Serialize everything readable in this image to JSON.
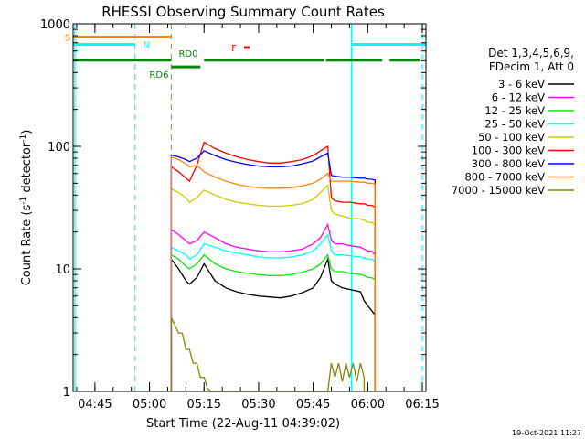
{
  "chart_data": {
    "type": "line",
    "title": "RHESSI Observing Summary Count Rates",
    "xlabel": "Start Time (22-Aug-11 04:39:02)",
    "ylabel_main": "Count Rate (s",
    "ylabel_sup1": "-1",
    "ylabel_mid": " detector",
    "ylabel_sup2": "-1",
    "ylabel_end": ")",
    "x_unit": "minutes after 04:39:02",
    "xlim": [
      0,
      97
    ],
    "ylim": [
      1,
      1000
    ],
    "y_scale": "log",
    "x_ticks": [
      {
        "value": 6,
        "label": "04:45"
      },
      {
        "value": 21,
        "label": "05:00"
      },
      {
        "value": 36,
        "label": "05:15"
      },
      {
        "value": 51,
        "label": "05:30"
      },
      {
        "value": 66,
        "label": "05:45"
      },
      {
        "value": 81,
        "label": "06:00"
      },
      {
        "value": 96,
        "label": "06:15"
      }
    ],
    "y_ticks": [
      {
        "value": 1,
        "label": "1"
      },
      {
        "value": 10,
        "label": "10"
      },
      {
        "value": 100,
        "label": "100"
      },
      {
        "value": 1000,
        "label": "1000"
      }
    ],
    "legend_header": [
      "Det 1,3,4,5,6,9,",
      "FDecim 1, Att 0"
    ],
    "legend_placement": "right",
    "series": [
      {
        "name": "3 - 6 keV",
        "color": "#000000",
        "x": [
          27,
          29,
          31,
          32,
          34,
          36,
          39,
          42,
          45,
          48,
          51,
          54,
          57,
          60,
          63,
          66,
          68,
          70,
          71,
          72,
          74,
          76,
          79,
          80,
          81,
          82,
          83
        ],
        "y": [
          12,
          10,
          8,
          7.5,
          8.5,
          11,
          8,
          7,
          6.5,
          6.2,
          6.0,
          5.9,
          5.8,
          6.0,
          6.4,
          7.0,
          8.5,
          12,
          8,
          7.5,
          7.0,
          6.8,
          6.5,
          5.5,
          5.0,
          4.6,
          4.2
        ]
      },
      {
        "name": "6 - 12 keV",
        "color": "#ff00ff",
        "x": [
          27,
          29,
          31,
          32,
          34,
          36,
          39,
          42,
          45,
          48,
          51,
          54,
          57,
          60,
          63,
          66,
          68,
          70,
          71,
          72,
          74,
          76,
          79,
          80,
          81,
          82,
          83
        ],
        "y": [
          21,
          19,
          17,
          16,
          17,
          20,
          18,
          16,
          15,
          14.5,
          14,
          13.8,
          13.8,
          14,
          14.5,
          16,
          18,
          23,
          17,
          16,
          16,
          15.5,
          15,
          14.5,
          14,
          14,
          13
        ]
      },
      {
        "name": "12 - 25 keV",
        "color": "#00ee00",
        "x": [
          27,
          29,
          31,
          32,
          34,
          36,
          39,
          42,
          45,
          48,
          51,
          54,
          57,
          60,
          63,
          66,
          68,
          70,
          71,
          72,
          74,
          76,
          79,
          80,
          81,
          82,
          83
        ],
        "y": [
          13,
          12,
          10.5,
          10,
          11,
          13,
          11,
          10,
          9.5,
          9.2,
          9.0,
          8.8,
          8.8,
          9.0,
          9.4,
          10,
          11,
          13,
          10,
          9.5,
          9.5,
          9.2,
          9.0,
          8.8,
          8.5,
          8.5,
          8.2
        ]
      },
      {
        "name": "25 - 50 keV",
        "color": "#00ffff",
        "x": [
          27,
          29,
          31,
          32,
          34,
          36,
          39,
          42,
          45,
          48,
          51,
          54,
          57,
          60,
          63,
          66,
          68,
          70,
          71,
          72,
          74,
          76,
          79,
          80,
          81,
          82,
          83
        ],
        "y": [
          15,
          14,
          13,
          12,
          13,
          16,
          15,
          14,
          13.5,
          13,
          12.5,
          12.3,
          12.3,
          12.5,
          13,
          14,
          16,
          19,
          14,
          13,
          13,
          12.8,
          12.5,
          12.3,
          12,
          12,
          11.5
        ]
      },
      {
        "name": "50 - 100 keV",
        "color": "#cccc00",
        "x": [
          27,
          29,
          31,
          32,
          34,
          36,
          39,
          42,
          45,
          48,
          51,
          54,
          57,
          60,
          63,
          66,
          68,
          70,
          71,
          72,
          74,
          76,
          79,
          80,
          81,
          82,
          83
        ],
        "y": [
          45,
          42,
          38,
          35,
          38,
          44,
          40,
          37,
          35,
          34,
          33,
          32.5,
          32.5,
          33,
          34,
          37,
          42,
          48,
          30,
          28,
          27,
          26,
          25.5,
          25,
          24,
          24,
          23
        ]
      },
      {
        "name": "100 - 300 keV",
        "color": "#ff0000",
        "x": [
          27,
          29,
          31,
          32,
          34,
          36,
          39,
          42,
          45,
          48,
          51,
          54,
          57,
          60,
          63,
          66,
          68,
          70,
          71,
          72,
          74,
          76,
          79,
          80,
          81,
          82,
          83
        ],
        "y": [
          68,
          62,
          55,
          52,
          70,
          108,
          96,
          88,
          82,
          78,
          75,
          73,
          73,
          75,
          78,
          84,
          92,
          100,
          38,
          36,
          35,
          35,
          34,
          34,
          33,
          33,
          32
        ]
      },
      {
        "name": "300 - 800 keV",
        "color": "#0000ff",
        "x": [
          27,
          29,
          31,
          32,
          34,
          36,
          39,
          42,
          45,
          48,
          51,
          54,
          57,
          60,
          63,
          66,
          68,
          70,
          71,
          72,
          74,
          76,
          79,
          80,
          81,
          82,
          83
        ],
        "y": [
          85,
          82,
          78,
          75,
          80,
          92,
          84,
          78,
          74,
          71,
          69,
          68,
          68,
          69,
          72,
          76,
          82,
          88,
          58,
          57,
          56,
          56,
          55,
          55,
          54,
          54,
          53
        ]
      },
      {
        "name": "800 - 7000 keV",
        "color": "#ff8800",
        "x": [
          27,
          29,
          31,
          32,
          34,
          36,
          39,
          42,
          45,
          48,
          51,
          54,
          57,
          60,
          63,
          66,
          68,
          70,
          71,
          72,
          74,
          76,
          79,
          80,
          81,
          82,
          83
        ],
        "y": [
          82,
          78,
          72,
          68,
          70,
          62,
          56,
          52,
          49,
          47,
          46,
          45.5,
          45.5,
          46,
          47.5,
          50,
          54,
          60,
          52,
          52,
          52,
          52,
          51,
          51,
          50,
          50,
          49
        ]
      },
      {
        "name": "7000 - 15000 keV",
        "color": "#888800",
        "x": [
          27,
          29,
          30,
          31,
          32,
          33,
          34,
          35,
          36,
          37,
          38,
          70,
          71,
          72,
          73,
          74,
          75,
          76,
          77,
          78,
          79,
          80
        ],
        "y": [
          4,
          3,
          3,
          2.2,
          2.2,
          1.7,
          1.7,
          1.3,
          1.3,
          1.05,
          1.0,
          1.0,
          1.7,
          1.3,
          1.7,
          1.2,
          1.7,
          1.3,
          1.7,
          1.2,
          1.7,
          1.3
        ]
      }
    ],
    "flags": [
      {
        "label": "S",
        "color": "#ff8800",
        "y": 780,
        "segments": [
          [
            0,
            27
          ]
        ]
      },
      {
        "label": "N",
        "color": "#00ffff",
        "y": 680,
        "segments": [
          [
            0,
            17
          ],
          [
            76.5,
            97
          ]
        ]
      },
      {
        "label": "RD0",
        "color": "#008800",
        "y": 505,
        "segments": [
          [
            0,
            27
          ],
          [
            36,
            69
          ],
          [
            69.5,
            85
          ],
          [
            87,
            95.5
          ]
        ]
      },
      {
        "label": "RD6",
        "color": "#008800",
        "y": 445,
        "segments": [
          [
            27,
            35
          ]
        ]
      },
      {
        "label": "F",
        "color": "#ff0000",
        "y": 640,
        "segments": [
          [
            47,
            48.5
          ]
        ]
      }
    ],
    "vertical_lines": [
      {
        "x": 0.5,
        "color": "#00ffff",
        "style": "solid"
      },
      {
        "x": 17,
        "color": "#00ffff",
        "style": "dashed"
      },
      {
        "x": 27,
        "color": "#ff8800",
        "style": "dashed"
      },
      {
        "x": 76.5,
        "color": "#00ffff",
        "style": "solid"
      },
      {
        "x": 96,
        "color": "#00ffff",
        "style": "dashed"
      }
    ],
    "timestamp": "19-Oct-2021 11:27"
  }
}
